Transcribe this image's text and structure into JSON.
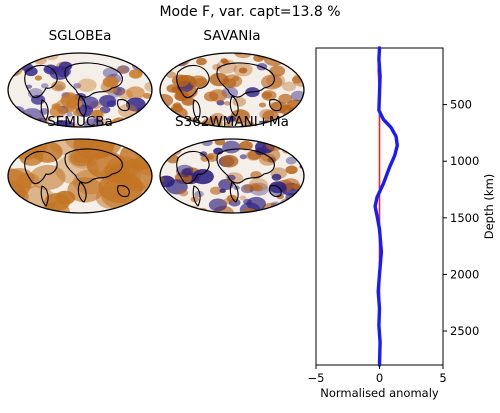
{
  "title": "Mode F, var. capt=13.8 %",
  "maps": [
    {
      "name": "SGLOBEa",
      "palette": "mixed-blue"
    },
    {
      "name": "SAVANIa",
      "palette": "mixed-orange"
    },
    {
      "name": "SEMUCBa",
      "palette": "smooth-orange"
    },
    {
      "name": "S362WMANI+Ma",
      "palette": "mixed-blue-strong"
    }
  ],
  "colors": {
    "positive": "#c0701a",
    "negative": "#3b2a8c",
    "line_mean": "#e8261b",
    "line_profile": "#1a1aff"
  },
  "chart_data": {
    "type": "line",
    "xlabel": "Normalised anomaly",
    "ylabel": "Depth (km)",
    "xlim": [
      -5,
      5
    ],
    "ylim": [
      2800,
      0
    ],
    "x_ticks": [
      -5,
      0,
      5
    ],
    "y_ticks": [
      500,
      1000,
      1500,
      2000,
      2500
    ],
    "series": [
      {
        "style": "red-thin",
        "points": [
          [
            0,
            0
          ],
          [
            -0.1,
            200
          ],
          [
            0,
            400
          ],
          [
            0,
            600
          ],
          [
            0,
            800
          ],
          [
            0,
            1000
          ],
          [
            0,
            1200
          ],
          [
            0,
            1400
          ],
          [
            0,
            1600
          ],
          [
            0,
            1800
          ],
          [
            0,
            2000
          ],
          [
            0,
            2200
          ],
          [
            0,
            2400
          ],
          [
            0,
            2600
          ],
          [
            0,
            2800
          ]
        ]
      },
      {
        "style": "blue-thick",
        "points": [
          [
            0,
            0
          ],
          [
            -0.05,
            100
          ],
          [
            0.05,
            250
          ],
          [
            0,
            400
          ],
          [
            -0.05,
            550
          ],
          [
            0.3,
            630
          ],
          [
            0.9,
            700
          ],
          [
            1.3,
            780
          ],
          [
            1.4,
            860
          ],
          [
            1.2,
            950
          ],
          [
            0.8,
            1050
          ],
          [
            0.3,
            1200
          ],
          [
            -0.2,
            1320
          ],
          [
            -0.35,
            1400
          ],
          [
            -0.2,
            1480
          ],
          [
            0,
            1600
          ],
          [
            0.15,
            1800
          ],
          [
            0,
            2000
          ],
          [
            -0.1,
            2150
          ],
          [
            0,
            2300
          ],
          [
            -0.05,
            2450
          ],
          [
            0.05,
            2600
          ],
          [
            0,
            2800
          ]
        ]
      }
    ]
  }
}
